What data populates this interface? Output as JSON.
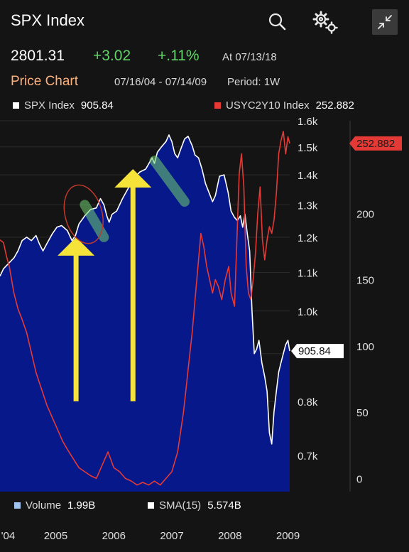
{
  "header": {
    "title": "SPX Index",
    "last_price": "2801.31",
    "net_change": "+3.02",
    "pct_change": "+.11%",
    "as_of": "At 07/13/18",
    "chart_label": "Price Chart",
    "date_range": "07/16/04 - 07/14/09",
    "period": "Period: 1W",
    "icons": [
      "search-icon",
      "gear-icon",
      "collapse-icon"
    ]
  },
  "legend_top": [
    {
      "name": "SPX Index",
      "value": "905.84",
      "color": "#ffffff"
    },
    {
      "name": "USYC2Y10 Index",
      "value": "252.882",
      "color": "#e53935"
    }
  ],
  "legend_bottom": [
    {
      "name": "Volume",
      "value": "1.99B",
      "color": "#9fc3ee"
    },
    {
      "name": "SMA(15)",
      "value": "5.574B",
      "color": "#ffffff"
    }
  ],
  "colors": {
    "area_fill": "#06188a",
    "spx_line": "#ffffff",
    "spread_line": "#e53935",
    "spread_tag": "#e53935",
    "arrow": "#f5e33a",
    "highlight": "#6fcf6f"
  },
  "chart_data": {
    "type": "line",
    "x_ticks": [
      "'04",
      "2005",
      "2006",
      "2007",
      "2008",
      "2009"
    ],
    "xlim": [
      2004.54,
      2009.53
    ],
    "left_axis": {
      "ticks": [
        "1.6k",
        "1.5k",
        "1.4k",
        "1.3k",
        "1.2k",
        "1.1k",
        "1.0k",
        "0.9k",
        "0.8k",
        "0.7k"
      ],
      "ylim": [
        640,
        1600
      ],
      "scale": "log"
    },
    "right_axis": {
      "ticks": [
        "200",
        "150",
        "100",
        "50",
        "0"
      ],
      "ylim": [
        -10,
        270
      ]
    },
    "last_value_tags": {
      "spx": "905.84",
      "spread": "252.882"
    },
    "series": [
      {
        "name": "SPX Index",
        "axis": "left",
        "style": "area",
        "x": [
          2004.54,
          2004.6,
          2004.66,
          2004.72,
          2004.78,
          2004.85,
          2004.92,
          2005.0,
          2005.08,
          2005.16,
          2005.22,
          2005.28,
          2005.36,
          2005.44,
          2005.52,
          2005.6,
          2005.7,
          2005.78,
          2005.84,
          2005.9,
          2006.0,
          2006.1,
          2006.2,
          2006.27,
          2006.33,
          2006.38,
          2006.42,
          2006.47,
          2006.55,
          2006.65,
          2006.75,
          2006.85,
          2006.95,
          2007.05,
          2007.12,
          2007.16,
          2007.2,
          2007.25,
          2007.32,
          2007.4,
          2007.45,
          2007.5,
          2007.55,
          2007.6,
          2007.65,
          2007.72,
          2007.78,
          2007.85,
          2007.9,
          2007.96,
          2008.02,
          2008.08,
          2008.15,
          2008.2,
          2008.25,
          2008.32,
          2008.4,
          2008.47,
          2008.52,
          2008.58,
          2008.63,
          2008.68,
          2008.72,
          2008.76,
          2008.8,
          2008.84,
          2008.88,
          2008.92,
          2008.96,
          2009.0,
          2009.05,
          2009.1,
          2009.14,
          2009.18,
          2009.22,
          2009.26,
          2009.3,
          2009.34,
          2009.38,
          2009.42,
          2009.46,
          2009.5,
          2009.53
        ],
        "values": [
          1090,
          1110,
          1120,
          1130,
          1140,
          1160,
          1190,
          1200,
          1190,
          1205,
          1180,
          1160,
          1185,
          1210,
          1230,
          1235,
          1220,
          1190,
          1205,
          1240,
          1265,
          1285,
          1290,
          1320,
          1300,
          1265,
          1245,
          1270,
          1280,
          1320,
          1355,
          1390,
          1410,
          1420,
          1445,
          1460,
          1440,
          1480,
          1500,
          1520,
          1545,
          1520,
          1475,
          1460,
          1490,
          1530,
          1540,
          1505,
          1470,
          1460,
          1420,
          1370,
          1335,
          1310,
          1330,
          1395,
          1400,
          1340,
          1280,
          1260,
          1250,
          1265,
          1230,
          1270,
          1210,
          1160,
          1000,
          900,
          910,
          930,
          880,
          850,
          820,
          740,
          720,
          780,
          820,
          860,
          880,
          900,
          920,
          930,
          905.84
        ]
      },
      {
        "name": "USYC2Y10 Index",
        "axis": "right",
        "x": [
          2004.54,
          2004.6,
          2004.65,
          2004.7,
          2004.78,
          2004.85,
          2004.92,
          2005.0,
          2005.08,
          2005.16,
          2005.25,
          2005.35,
          2005.45,
          2005.55,
          2005.62,
          2005.7,
          2005.8,
          2005.9,
          2006.0,
          2006.1,
          2006.2,
          2006.3,
          2006.4,
          2006.5,
          2006.6,
          2006.7,
          2006.8,
          2006.9,
          2007.0,
          2007.1,
          2007.2,
          2007.3,
          2007.4,
          2007.5,
          2007.6,
          2007.65,
          2007.7,
          2007.75,
          2007.8,
          2007.85,
          2007.9,
          2007.95,
          2008.0,
          2008.05,
          2008.1,
          2008.15,
          2008.2,
          2008.25,
          2008.3,
          2008.36,
          2008.42,
          2008.48,
          2008.52,
          2008.58,
          2008.62,
          2008.66,
          2008.7,
          2008.74,
          2008.78,
          2008.82,
          2008.86,
          2008.9,
          2008.94,
          2008.98,
          2009.02,
          2009.06,
          2009.1,
          2009.14,
          2009.18,
          2009.22,
          2009.26,
          2009.3,
          2009.34,
          2009.38,
          2009.42,
          2009.46,
          2009.5,
          2009.53
        ],
        "values": [
          180,
          178,
          168,
          160,
          140,
          128,
          120,
          110,
          95,
          80,
          68,
          55,
          45,
          35,
          28,
          22,
          15,
          8,
          5,
          2,
          0,
          10,
          20,
          8,
          5,
          0,
          -2,
          -5,
          -3,
          -5,
          -2,
          -5,
          0,
          5,
          20,
          35,
          50,
          70,
          90,
          110,
          135,
          160,
          185,
          175,
          160,
          150,
          140,
          150,
          145,
          135,
          150,
          160,
          140,
          130,
          180,
          230,
          245,
          220,
          160,
          140,
          135,
          150,
          170,
          200,
          220,
          180,
          165,
          180,
          190,
          185,
          195,
          215,
          245,
          255,
          262,
          245,
          258,
          252.882
        ]
      }
    ],
    "annotations": [
      {
        "type": "arrow",
        "x": 2005.85,
        "from": 0.8,
        "to": 1.2
      },
      {
        "type": "arrow",
        "x": 2006.83,
        "from": 0.8,
        "to": 1.42
      },
      {
        "type": "highlight",
        "x": [
          2006.0,
          2006.33
        ],
        "y": [
          1300,
          1200
        ]
      },
      {
        "type": "highlight",
        "x": [
          2007.2,
          2007.72
        ],
        "y": [
          1450,
          1310
        ]
      },
      {
        "type": "circle",
        "x": 2005.98,
        "y": 1270
      }
    ]
  }
}
